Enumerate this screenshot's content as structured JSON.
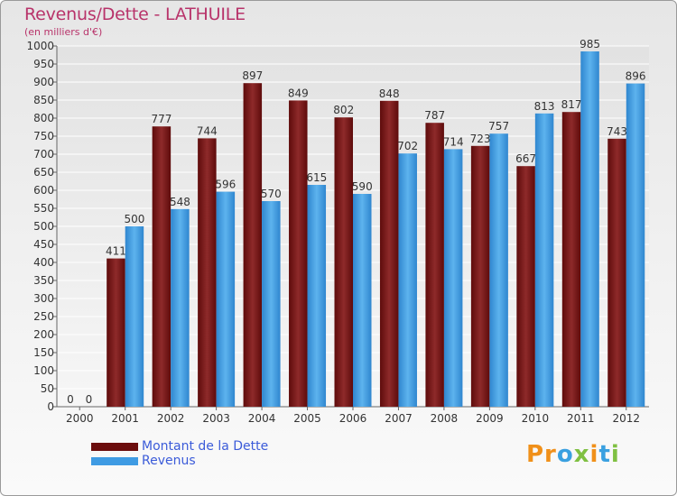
{
  "header": {
    "title": "Revenus/Dette - LATHUILE",
    "subtitle": "(en milliers d'€)"
  },
  "legend": [
    {
      "label": "Montant de la Dette",
      "color": "#6b0d0d"
    },
    {
      "label": "Revenus",
      "color": "#3f9be3"
    }
  ],
  "logo": {
    "text": "Proxiti"
  },
  "chart_data": {
    "type": "bar",
    "title": "Revenus/Dette - LATHUILE",
    "subtitle": "(en milliers d'€)",
    "categories": [
      "2000",
      "2001",
      "2002",
      "2003",
      "2004",
      "2005",
      "2006",
      "2007",
      "2008",
      "2009",
      "2010",
      "2011",
      "2012"
    ],
    "series": [
      {
        "name": "Montant de la Dette",
        "color": "#7a1c1c",
        "values": [
          0,
          411,
          777,
          744,
          897,
          849,
          802,
          848,
          787,
          723,
          667,
          817,
          743
        ]
      },
      {
        "name": "Revenus",
        "color": "#4aa3e6",
        "values": [
          0,
          500,
          548,
          596,
          570,
          615,
          590,
          702,
          714,
          757,
          813,
          985,
          896
        ]
      }
    ],
    "ylim": [
      0,
      1000
    ],
    "ytick_step": 50,
    "grid": true,
    "legend_position": "bottom-left"
  }
}
